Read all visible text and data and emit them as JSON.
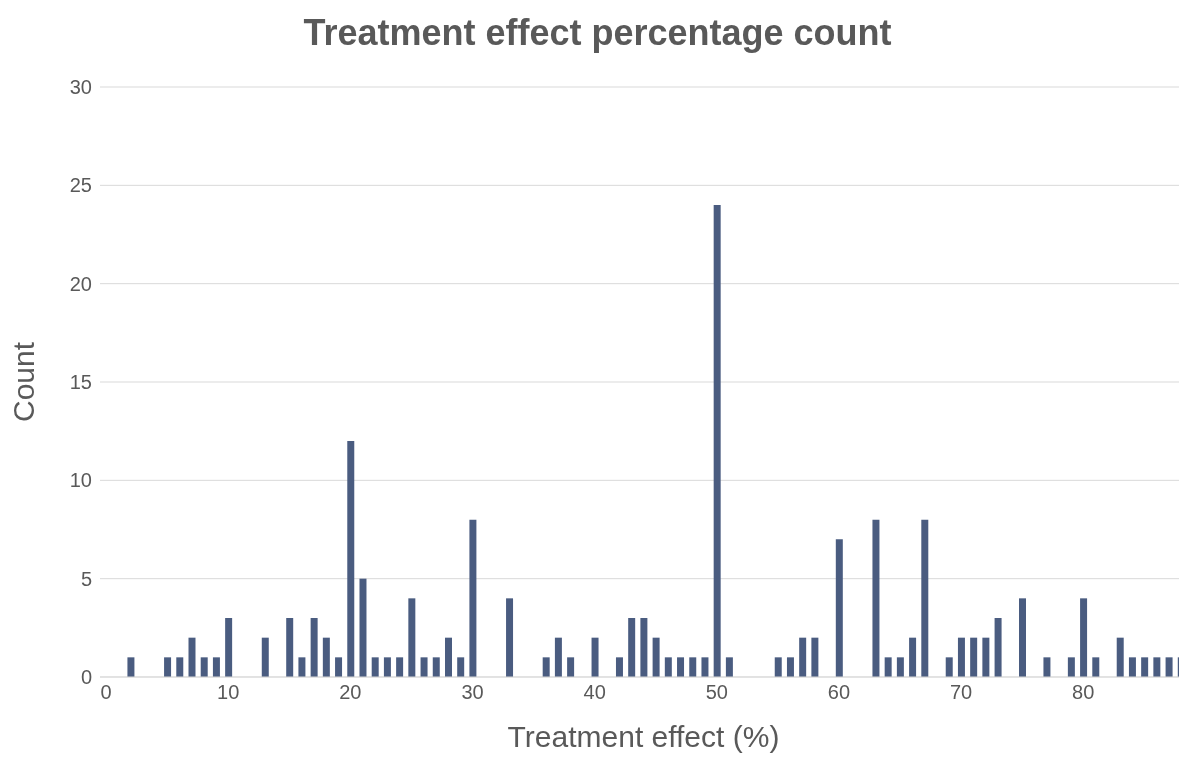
{
  "chart_data": {
    "type": "bar",
    "title": "Treatment effect percentage count",
    "xlabel": "Treatment effect (%)",
    "ylabel": "Count",
    "x": [
      2,
      5,
      6,
      7,
      8,
      9,
      10,
      13,
      15,
      16,
      17,
      18,
      19,
      20,
      21,
      22,
      23,
      24,
      25,
      26,
      27,
      28,
      29,
      30,
      33,
      36,
      37,
      38,
      40,
      42,
      43,
      44,
      45,
      46,
      47,
      48,
      49,
      50,
      51,
      55,
      56,
      57,
      58,
      60,
      63,
      64,
      65,
      66,
      67,
      69,
      70,
      71,
      72,
      73,
      75,
      77,
      79,
      80,
      81,
      83,
      84,
      85,
      86,
      87,
      88
    ],
    "values": [
      1,
      1,
      1,
      2,
      1,
      1,
      3,
      2,
      3,
      1,
      3,
      2,
      1,
      12,
      5,
      1,
      1,
      1,
      4,
      1,
      1,
      2,
      1,
      8,
      4,
      1,
      2,
      1,
      2,
      1,
      3,
      3,
      2,
      1,
      1,
      1,
      1,
      24,
      1,
      1,
      1,
      2,
      2,
      7,
      8,
      1,
      1,
      2,
      8,
      1,
      2,
      2,
      2,
      3,
      4,
      1,
      1,
      4,
      1,
      2,
      1,
      1,
      1,
      1,
      1
    ],
    "color": "#4a5c80",
    "xlim": [
      -0.5,
      88.5
    ],
    "xticks": [
      0,
      10,
      20,
      30,
      40,
      50,
      60,
      70,
      80
    ],
    "ylim": [
      0,
      30
    ],
    "yticks": [
      0,
      5,
      10,
      15,
      20,
      25,
      30
    ],
    "grid": "y",
    "legend": false
  }
}
